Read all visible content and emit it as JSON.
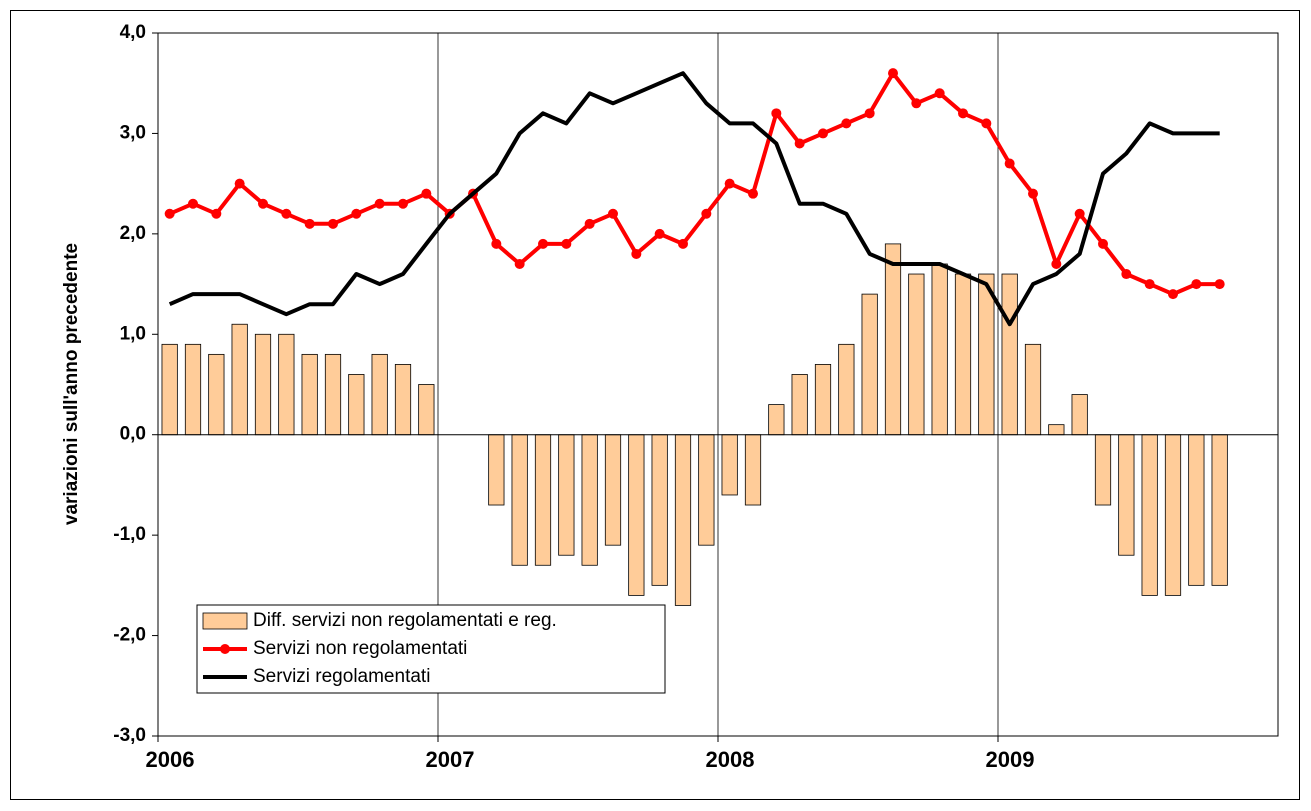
{
  "chart_data": {
    "type": "bar-line",
    "y_label": "variazioni sull'anno precedente",
    "categories": [
      null,
      null,
      null,
      null,
      null,
      null,
      null,
      null,
      null,
      null,
      null,
      null,
      null,
      null,
      null,
      null,
      null,
      null,
      null,
      null,
      null,
      null,
      null,
      null,
      null,
      null,
      null,
      null,
      null,
      null,
      null,
      null,
      null,
      null,
      null,
      null,
      null,
      null,
      null,
      null,
      null,
      null,
      null,
      null,
      null,
      null,
      null,
      null
    ],
    "xticks": [
      {
        "value": 0,
        "label": "2006"
      },
      {
        "value": 12,
        "label": "2007"
      },
      {
        "value": 24,
        "label": "2008"
      },
      {
        "value": 36,
        "label": "2009"
      }
    ],
    "ylim": [
      -3,
      4
    ],
    "yticks": [
      {
        "value": -3,
        "label": "-3,0"
      },
      {
        "value": -2,
        "label": "-2,0"
      },
      {
        "value": -1,
        "label": "-1,0"
      },
      {
        "value": 0,
        "label": "0,0"
      },
      {
        "value": 1,
        "label": "1,0"
      },
      {
        "value": 2,
        "label": "2,0"
      },
      {
        "value": 3,
        "label": "3,0"
      },
      {
        "value": 4,
        "label": "4,0"
      }
    ],
    "vertical_grid": true,
    "legend": "bottom-left",
    "series": [
      {
        "name": "Diff. servizi non regolamentati e reg.",
        "kind": "bar",
        "color": "#ffcc99",
        "values": [
          0.9,
          0.9,
          0.8,
          1.1,
          1.0,
          1.0,
          0.8,
          0.8,
          0.6,
          0.8,
          0.7,
          0.5,
          0.0,
          0.0,
          -0.7,
          -1.3,
          -1.3,
          -1.2,
          -1.3,
          -1.1,
          -1.6,
          -1.5,
          -1.7,
          -1.1,
          -0.6,
          -0.7,
          0.3,
          0.6,
          0.7,
          0.9,
          1.4,
          1.9,
          1.6,
          1.7,
          1.6,
          1.6,
          1.6,
          0.9,
          0.1,
          0.4,
          -0.7,
          -1.2,
          -1.6,
          -1.6,
          -1.5,
          -1.5,
          null,
          null
        ]
      },
      {
        "name": "Servizi non regolamentati",
        "kind": "line",
        "marker": true,
        "color": "#ff0000",
        "values": [
          2.2,
          2.3,
          2.2,
          2.5,
          2.3,
          2.2,
          2.1,
          2.1,
          2.2,
          2.3,
          2.3,
          2.4,
          2.2,
          2.4,
          1.9,
          1.7,
          1.9,
          1.9,
          2.1,
          2.2,
          1.8,
          2.0,
          1.9,
          2.2,
          2.5,
          2.4,
          3.2,
          2.9,
          3.0,
          3.1,
          3.2,
          3.6,
          3.3,
          3.4,
          3.2,
          3.1,
          2.7,
          2.4,
          1.7,
          2.2,
          1.9,
          1.6,
          1.5,
          1.4,
          1.5,
          1.5,
          null,
          null
        ]
      },
      {
        "name": "Servizi regolamentati",
        "kind": "line",
        "marker": false,
        "color": "#000000",
        "values": [
          1.3,
          1.4,
          1.4,
          1.4,
          1.3,
          1.2,
          1.3,
          1.3,
          1.6,
          1.5,
          1.6,
          1.9,
          2.2,
          2.4,
          2.6,
          3.0,
          3.2,
          3.1,
          3.4,
          3.3,
          3.4,
          3.5,
          3.6,
          3.3,
          3.1,
          3.1,
          2.9,
          2.3,
          2.3,
          2.2,
          1.8,
          1.7,
          1.7,
          1.7,
          1.6,
          1.5,
          1.1,
          1.5,
          1.6,
          1.8,
          2.6,
          2.8,
          3.1,
          3.0,
          3.0,
          3.0,
          null,
          null
        ]
      }
    ]
  }
}
